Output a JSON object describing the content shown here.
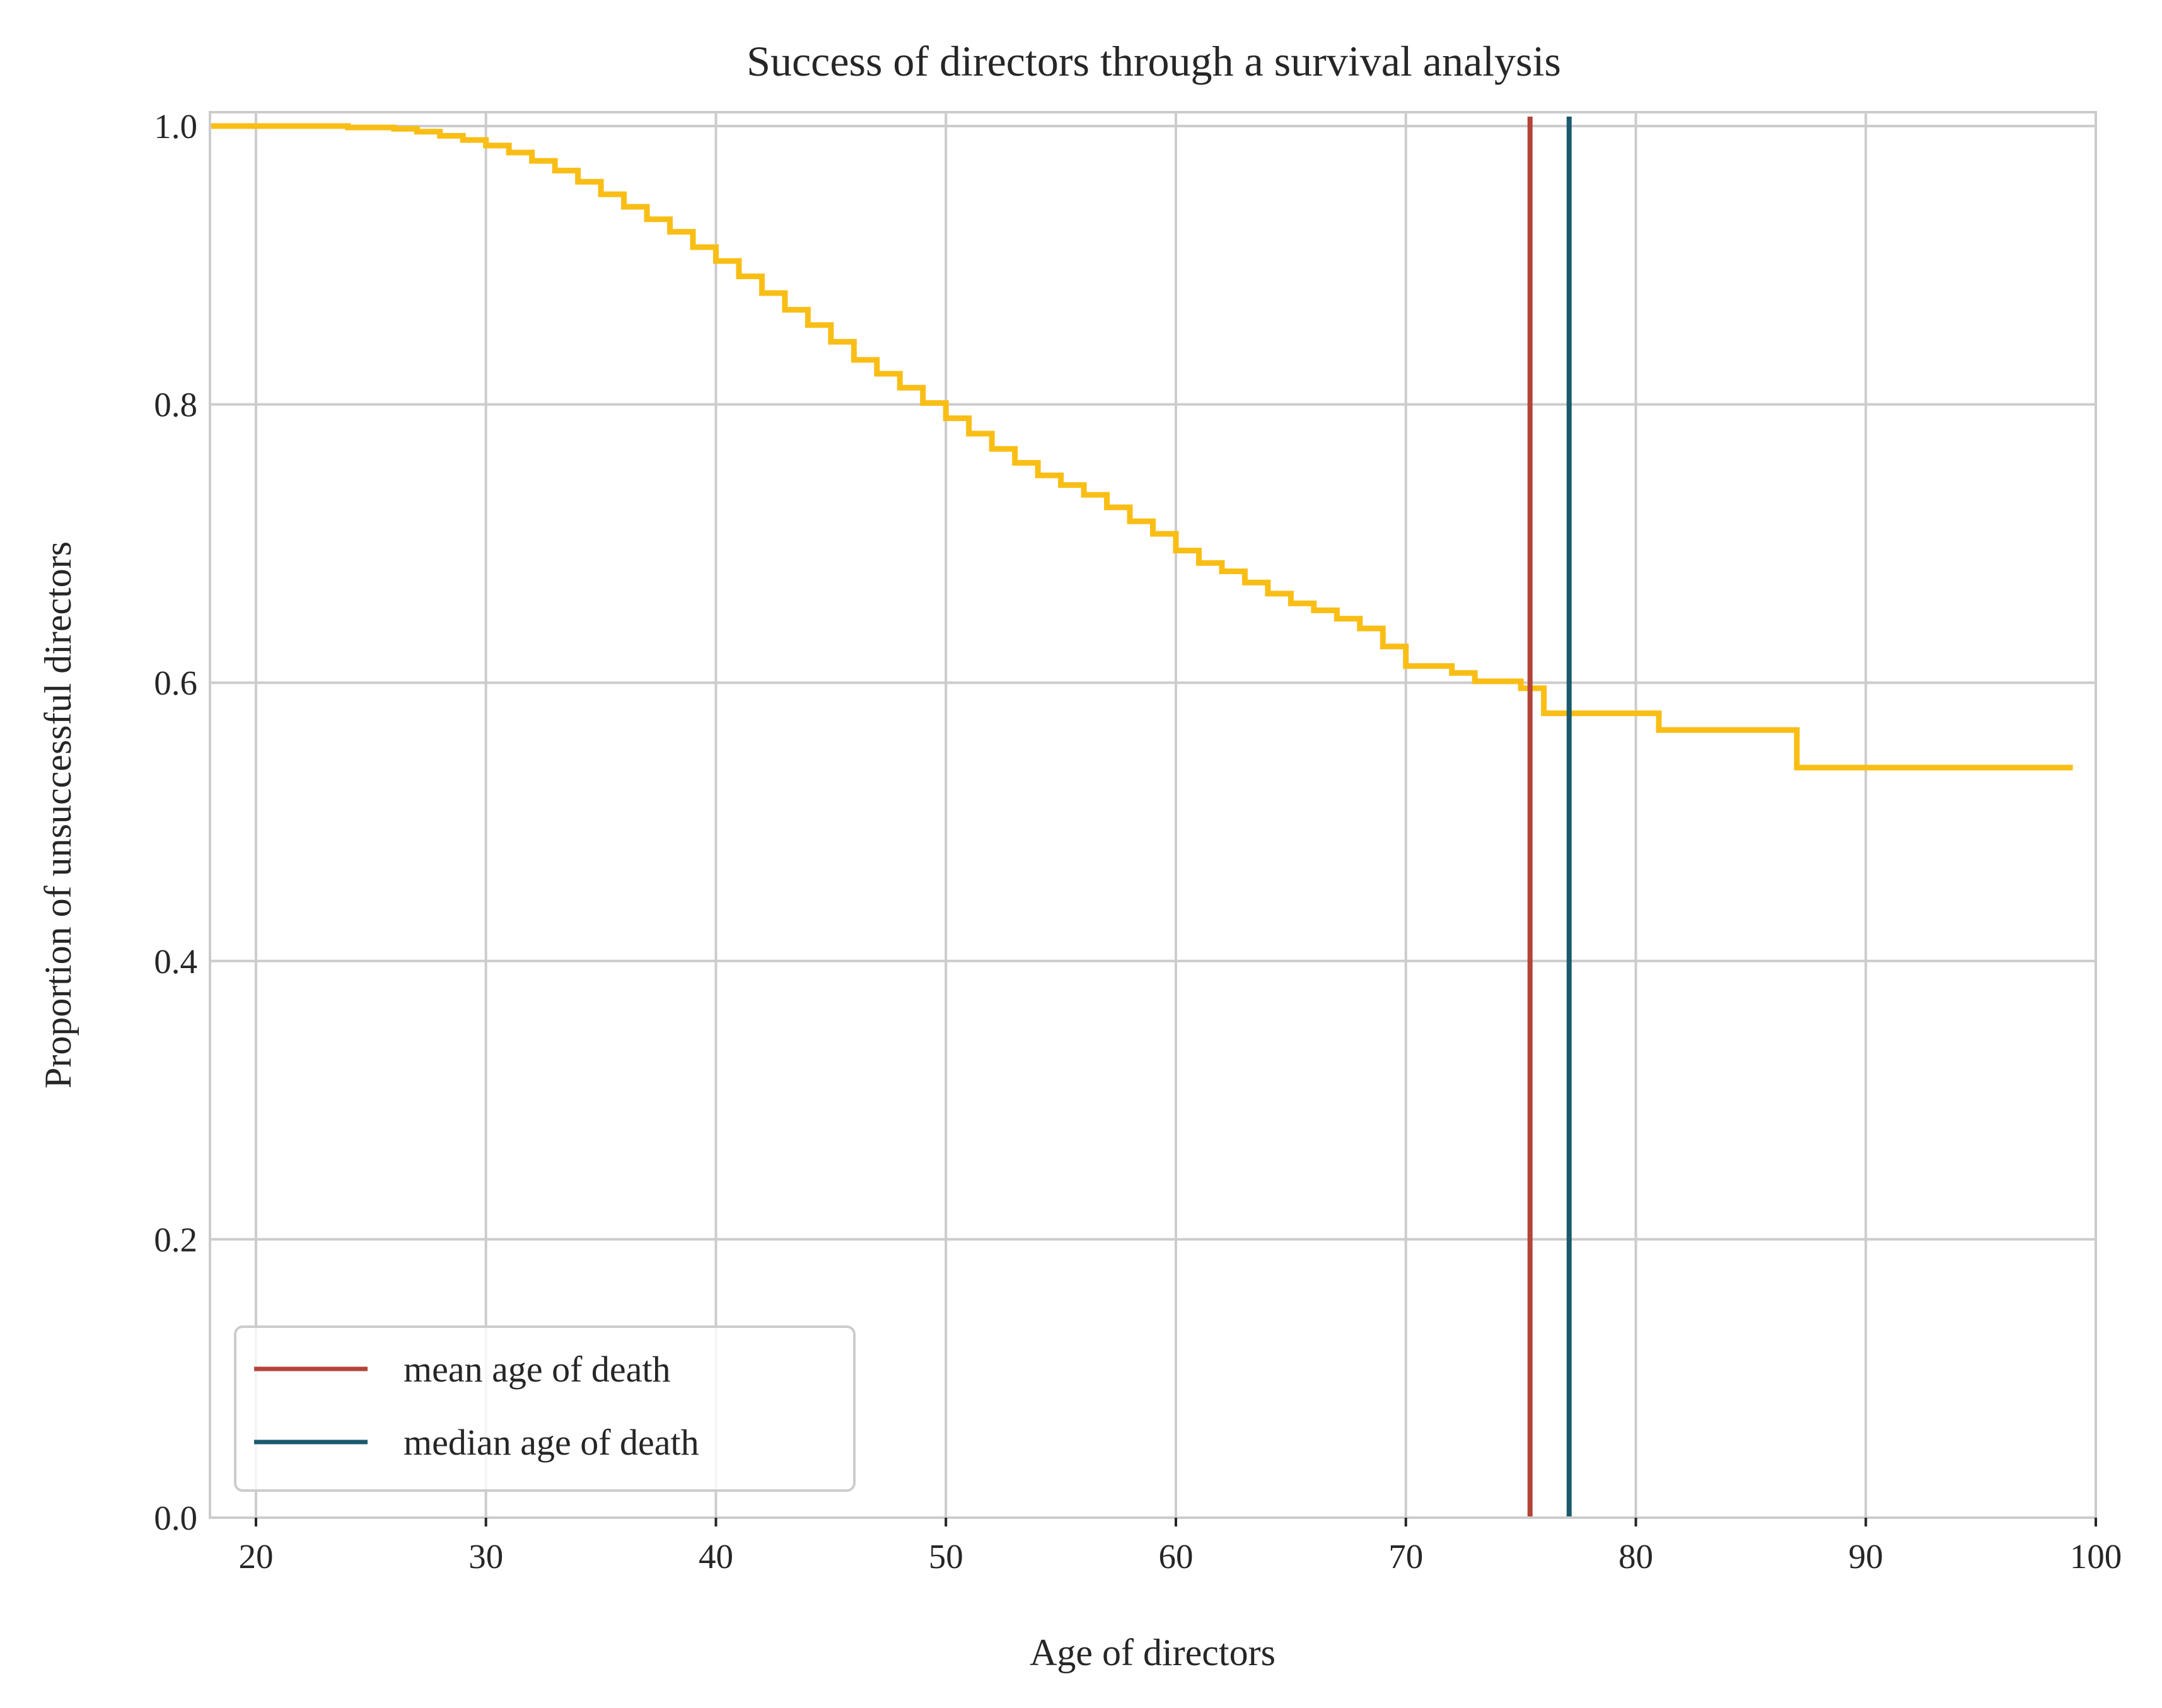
{
  "chart_data": {
    "type": "line",
    "title": "Success of directors through a survival analysis",
    "xlabel": "Age of directors",
    "ylabel": "Proportion of unsuccessful directors",
    "xlim": [
      18,
      100
    ],
    "ylim": [
      0.0,
      1.0
    ],
    "xticks": [
      20,
      30,
      40,
      50,
      60,
      70,
      80,
      90,
      100
    ],
    "xtick_labels": [
      "20",
      "30",
      "40",
      "50",
      "60",
      "70",
      "80",
      "90",
      "100"
    ],
    "yticks": [
      0.0,
      0.2,
      0.4,
      0.6,
      0.8,
      1.0
    ],
    "ytick_labels": [
      "0.0",
      "0.2",
      "0.4",
      "0.6",
      "0.8",
      "1.0"
    ],
    "grid": true,
    "legend_placement": "lower-left",
    "colors": {
      "survival": "#f9be16",
      "mean": "#b3443a",
      "median": "#1b5a6e"
    },
    "survival": {
      "step": "post",
      "x": [
        18,
        24,
        26,
        27,
        28,
        29,
        30,
        31,
        32,
        33,
        34,
        35,
        36,
        37,
        38,
        39,
        40,
        41,
        42,
        43,
        44,
        45,
        46,
        47,
        48,
        49,
        50,
        51,
        52,
        53,
        54,
        55,
        56,
        57,
        58,
        59,
        60,
        61,
        62,
        63,
        64,
        65,
        66,
        67,
        68,
        69,
        70,
        72,
        73,
        75,
        76,
        81,
        87,
        99
      ],
      "y": [
        1.0,
        0.999,
        0.998,
        0.996,
        0.993,
        0.99,
        0.986,
        0.981,
        0.975,
        0.968,
        0.96,
        0.951,
        0.942,
        0.933,
        0.924,
        0.913,
        0.903,
        0.892,
        0.88,
        0.868,
        0.857,
        0.845,
        0.832,
        0.822,
        0.812,
        0.801,
        0.79,
        0.779,
        0.768,
        0.758,
        0.749,
        0.742,
        0.735,
        0.726,
        0.716,
        0.707,
        0.695,
        0.686,
        0.68,
        0.672,
        0.664,
        0.657,
        0.652,
        0.646,
        0.639,
        0.626,
        0.612,
        0.607,
        0.601,
        0.596,
        0.578,
        0.566,
        0.539,
        0.539
      ]
    },
    "vlines": [
      {
        "name": "mean age of death",
        "x": 75.4
      },
      {
        "name": "median age of death",
        "x": 77.1
      }
    ],
    "legend": [
      "mean age of death",
      "median age of death"
    ]
  }
}
